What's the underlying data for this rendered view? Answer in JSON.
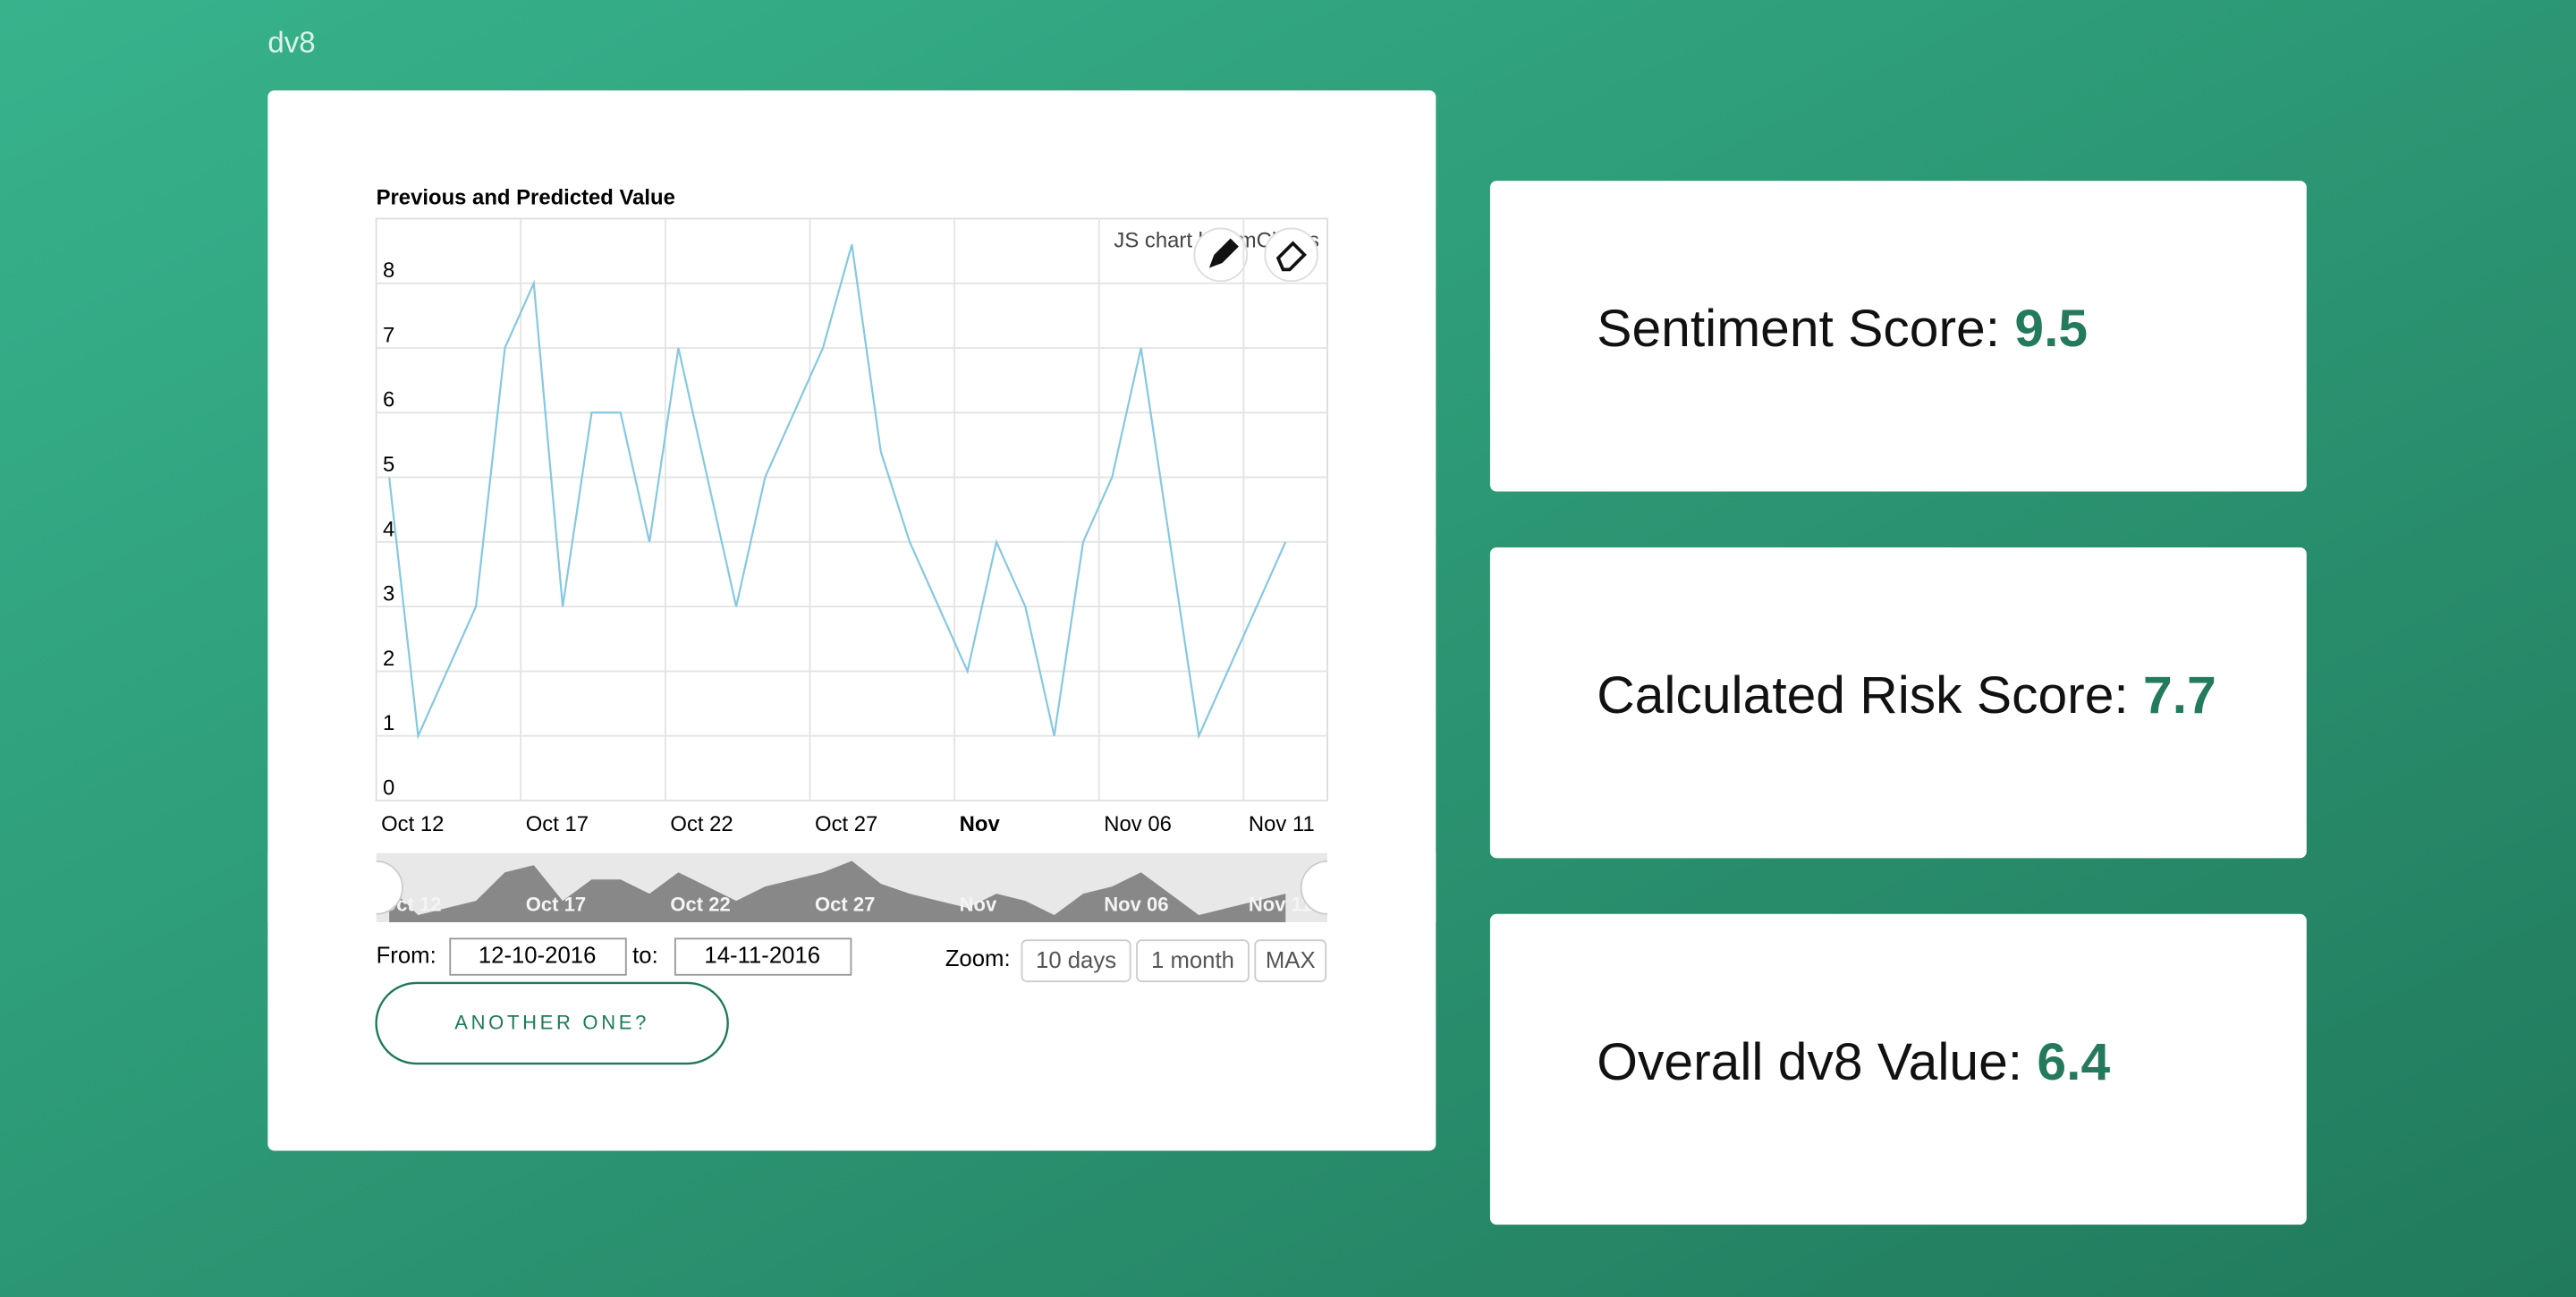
{
  "header": {
    "brand": "dv8"
  },
  "chart_data": {
    "type": "line",
    "title": "Previous and Predicted Value",
    "credit": "JS chart by amCharts",
    "categories": [
      "Oct 12",
      null,
      null,
      null,
      null,
      "Oct 17",
      null,
      null,
      null,
      null,
      "Oct 22",
      null,
      null,
      null,
      null,
      "Oct 27",
      null,
      null,
      null,
      null,
      "Nov",
      null,
      null,
      null,
      null,
      "Nov 06",
      null,
      null,
      null,
      null,
      "Nov 11",
      null
    ],
    "values": [
      5,
      1,
      2,
      3,
      7,
      8,
      3,
      6,
      6,
      4,
      7,
      5,
      3,
      5,
      6,
      7,
      8.6,
      5.4,
      4,
      3,
      2,
      4,
      3,
      1,
      4,
      5,
      7,
      4,
      1,
      2,
      3,
      4
    ],
    "color": "#86c8e2",
    "ylim": [
      0,
      9
    ],
    "yticks": [
      0,
      1,
      2,
      3,
      4,
      5,
      6,
      7,
      8
    ],
    "grid": true
  },
  "controls": {
    "from_label": "From:",
    "from_value": "12-10-2016",
    "to_label": "to:",
    "to_value": "14-11-2016",
    "zoom_label": "Zoom:",
    "zoom_options": [
      "10 days",
      "1 month",
      "MAX"
    ],
    "button": "ANOTHER ONE?"
  },
  "scores": [
    {
      "label": "Sentiment Score:",
      "value": 9.5
    },
    {
      "label": "Calculated Risk Score:",
      "value": 7.7
    },
    {
      "label": "Overall dv8 Value:",
      "value": 6.4
    }
  ]
}
